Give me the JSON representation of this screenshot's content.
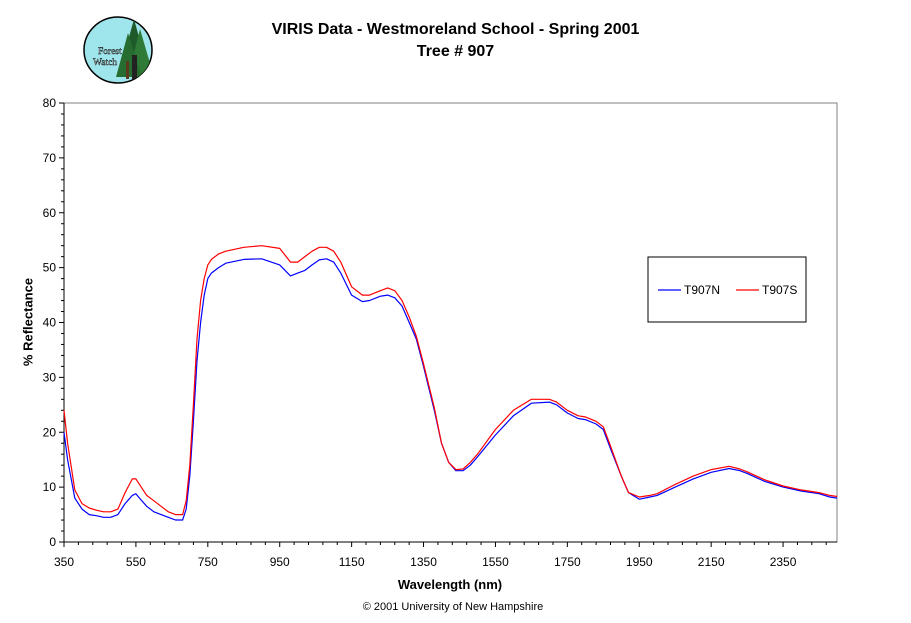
{
  "header": {
    "title_line1": "VIRIS Data - Westmoreland School - Spring 2001",
    "title_line2": "Tree # 907"
  },
  "logo": {
    "text_line1": "Forest",
    "text_line2": "Watch"
  },
  "footer": {
    "copyright": "© 2001 University of New Hampshire"
  },
  "chart_data": {
    "type": "line",
    "title": "VIRIS Data - Westmoreland School - Spring 2001",
    "subtitle": "Tree # 907",
    "xlabel": "Wavelength (nm)",
    "ylabel": "% Reflectance",
    "xlim": [
      350,
      2500
    ],
    "ylim": [
      0,
      80
    ],
    "xticks": [
      350,
      550,
      750,
      950,
      1150,
      1350,
      1550,
      1750,
      1950,
      2150,
      2350
    ],
    "yticks": [
      0,
      10,
      20,
      30,
      40,
      50,
      60,
      70,
      80
    ],
    "grid": false,
    "legend_position": "right",
    "series": [
      {
        "name": "T907N",
        "color": "#0000ff",
        "x": [
          350,
          360,
          380,
          400,
          420,
          440,
          460,
          480,
          500,
          520,
          540,
          550,
          560,
          580,
          600,
          620,
          640,
          660,
          680,
          690,
          700,
          710,
          720,
          730,
          740,
          750,
          760,
          780,
          800,
          850,
          900,
          950,
          980,
          1000,
          1020,
          1040,
          1060,
          1080,
          1100,
          1120,
          1150,
          1180,
          1200,
          1230,
          1250,
          1270,
          1290,
          1310,
          1330,
          1350,
          1380,
          1400,
          1420,
          1440,
          1460,
          1480,
          1500,
          1550,
          1600,
          1650,
          1700,
          1720,
          1750,
          1780,
          1800,
          1830,
          1850,
          1870,
          1900,
          1920,
          1950,
          1980,
          2000,
          2050,
          2100,
          2150,
          2200,
          2230,
          2250,
          2300,
          2350,
          2400,
          2450,
          2480,
          2500
        ],
        "values": [
          20,
          15,
          8,
          6,
          5,
          4.8,
          4.5,
          4.5,
          5,
          7,
          8.5,
          8.8,
          8,
          6.5,
          5.5,
          5,
          4.5,
          4,
          4,
          6,
          12,
          22,
          33,
          40,
          45,
          48,
          49,
          50,
          50.8,
          51.5,
          51.6,
          50.5,
          48.5,
          49,
          49.5,
          50.5,
          51.4,
          51.6,
          51,
          49,
          45,
          43.8,
          44,
          44.8,
          45,
          44.5,
          43,
          40,
          37,
          32,
          24,
          18,
          14.5,
          13,
          13,
          14,
          15.5,
          19.5,
          23,
          25.3,
          25.5,
          25,
          23.5,
          22.5,
          22.3,
          21.5,
          20.5,
          17,
          12,
          9,
          7.8,
          8.2,
          8.5,
          10,
          11.5,
          12.7,
          13.4,
          13,
          12.5,
          11,
          10,
          9.3,
          8.8,
          8.2,
          8
        ]
      },
      {
        "name": "T907S",
        "color": "#ff0000",
        "x": [
          350,
          360,
          380,
          400,
          420,
          440,
          460,
          480,
          500,
          520,
          540,
          550,
          560,
          580,
          600,
          620,
          640,
          660,
          680,
          690,
          700,
          710,
          720,
          730,
          740,
          750,
          760,
          780,
          800,
          850,
          900,
          950,
          980,
          1000,
          1020,
          1040,
          1060,
          1080,
          1100,
          1120,
          1150,
          1180,
          1200,
          1230,
          1250,
          1270,
          1290,
          1310,
          1330,
          1350,
          1380,
          1400,
          1420,
          1440,
          1460,
          1480,
          1500,
          1550,
          1600,
          1650,
          1700,
          1720,
          1750,
          1780,
          1800,
          1830,
          1850,
          1870,
          1900,
          1920,
          1950,
          1980,
          2000,
          2050,
          2100,
          2150,
          2200,
          2230,
          2250,
          2300,
          2350,
          2400,
          2450,
          2480,
          2500
        ],
        "values": [
          24,
          18,
          9.5,
          7,
          6.2,
          5.8,
          5.5,
          5.5,
          6,
          9,
          11.5,
          11.5,
          10.5,
          8.5,
          7.5,
          6.5,
          5.5,
          5,
          5,
          7.5,
          14,
          25,
          37,
          44,
          48,
          50.5,
          51.5,
          52.5,
          53,
          53.7,
          54,
          53.5,
          51,
          51,
          52,
          53,
          53.7,
          53.7,
          53,
          51,
          46.5,
          45,
          45,
          45.8,
          46.3,
          45.8,
          44,
          41,
          37.5,
          32.5,
          24.5,
          18,
          14.5,
          13.2,
          13.3,
          14.5,
          16,
          20.5,
          24,
          26,
          26,
          25.5,
          24,
          23,
          22.8,
          22,
          21,
          17.5,
          12,
          9,
          8.2,
          8.5,
          8.8,
          10.5,
          12,
          13.2,
          13.8,
          13.3,
          12.8,
          11.3,
          10.2,
          9.5,
          9,
          8.5,
          8.3
        ]
      }
    ]
  }
}
